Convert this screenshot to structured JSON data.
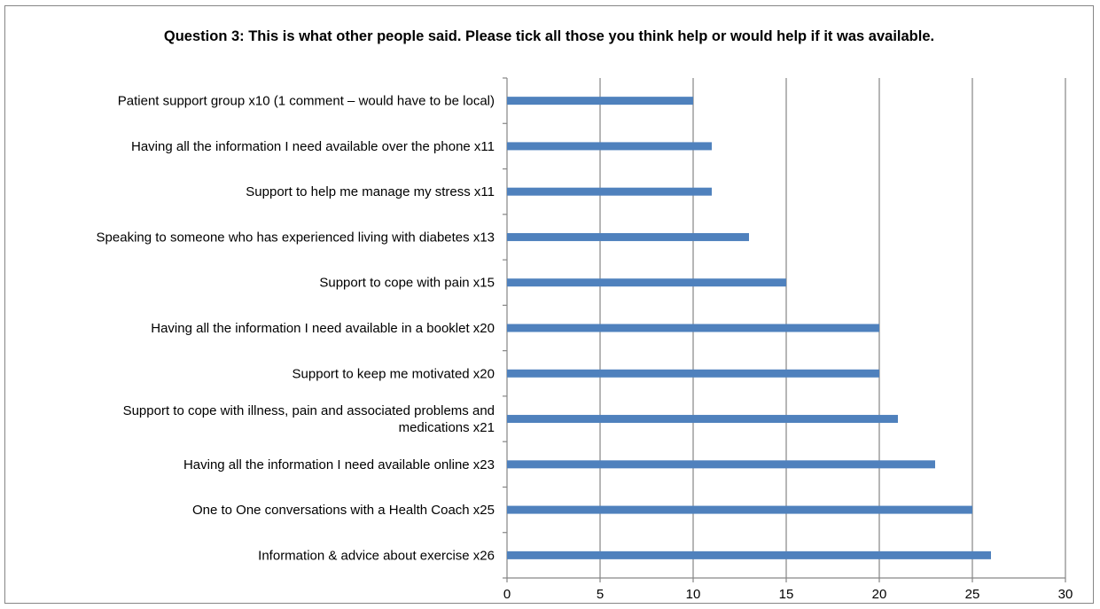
{
  "chart_data": {
    "type": "bar",
    "orientation": "horizontal",
    "title": "Question 3: This is what other people said. Please tick all those you think help or would help if it was available.",
    "xlabel": "",
    "ylabel": "",
    "xlim": [
      0,
      30
    ],
    "x_ticks": [
      0,
      5,
      10,
      15,
      20,
      25,
      30
    ],
    "grid": "vertical major gridlines",
    "legend": "none",
    "bar_color": "#4F81BD",
    "categories": [
      "Patient support group  x10 (1 comment – would have to be local)",
      "Having all the information I need available over the phone  x11",
      "Support to help me manage my stress  x11",
      "Speaking to someone who has experienced living with diabetes  x13",
      "Support to cope with pain  x15",
      "Having all the information I need available in a booklet  x20",
      "Support to keep me motivated  x20",
      "Support to cope with illness, pain and associated problems and medications  x21",
      "Having all the information I need available online  x23",
      "One to One conversations with a Health Coach  x25",
      "Information & advice about exercise  x26"
    ],
    "category_label_lines": [
      [
        "Patient support group  x10 (1 comment – would have to be local)"
      ],
      [
        "Having all the information I need available over the phone  x11"
      ],
      [
        "Support to help me manage my stress  x11"
      ],
      [
        "Speaking to someone who has experienced living with diabetes  x13"
      ],
      [
        "Support to cope with pain  x15"
      ],
      [
        "Having all the information I need available in a booklet  x20"
      ],
      [
        "Support to keep me motivated  x20"
      ],
      [
        "Support to cope with illness, pain and associated problems and",
        "medications  x21"
      ],
      [
        "Having all the information I need available online  x23"
      ],
      [
        "One to One conversations with a Health Coach  x25"
      ],
      [
        "Information & advice about exercise  x26"
      ]
    ],
    "values": [
      10,
      11,
      11,
      13,
      15,
      20,
      20,
      21,
      23,
      25,
      26
    ]
  }
}
